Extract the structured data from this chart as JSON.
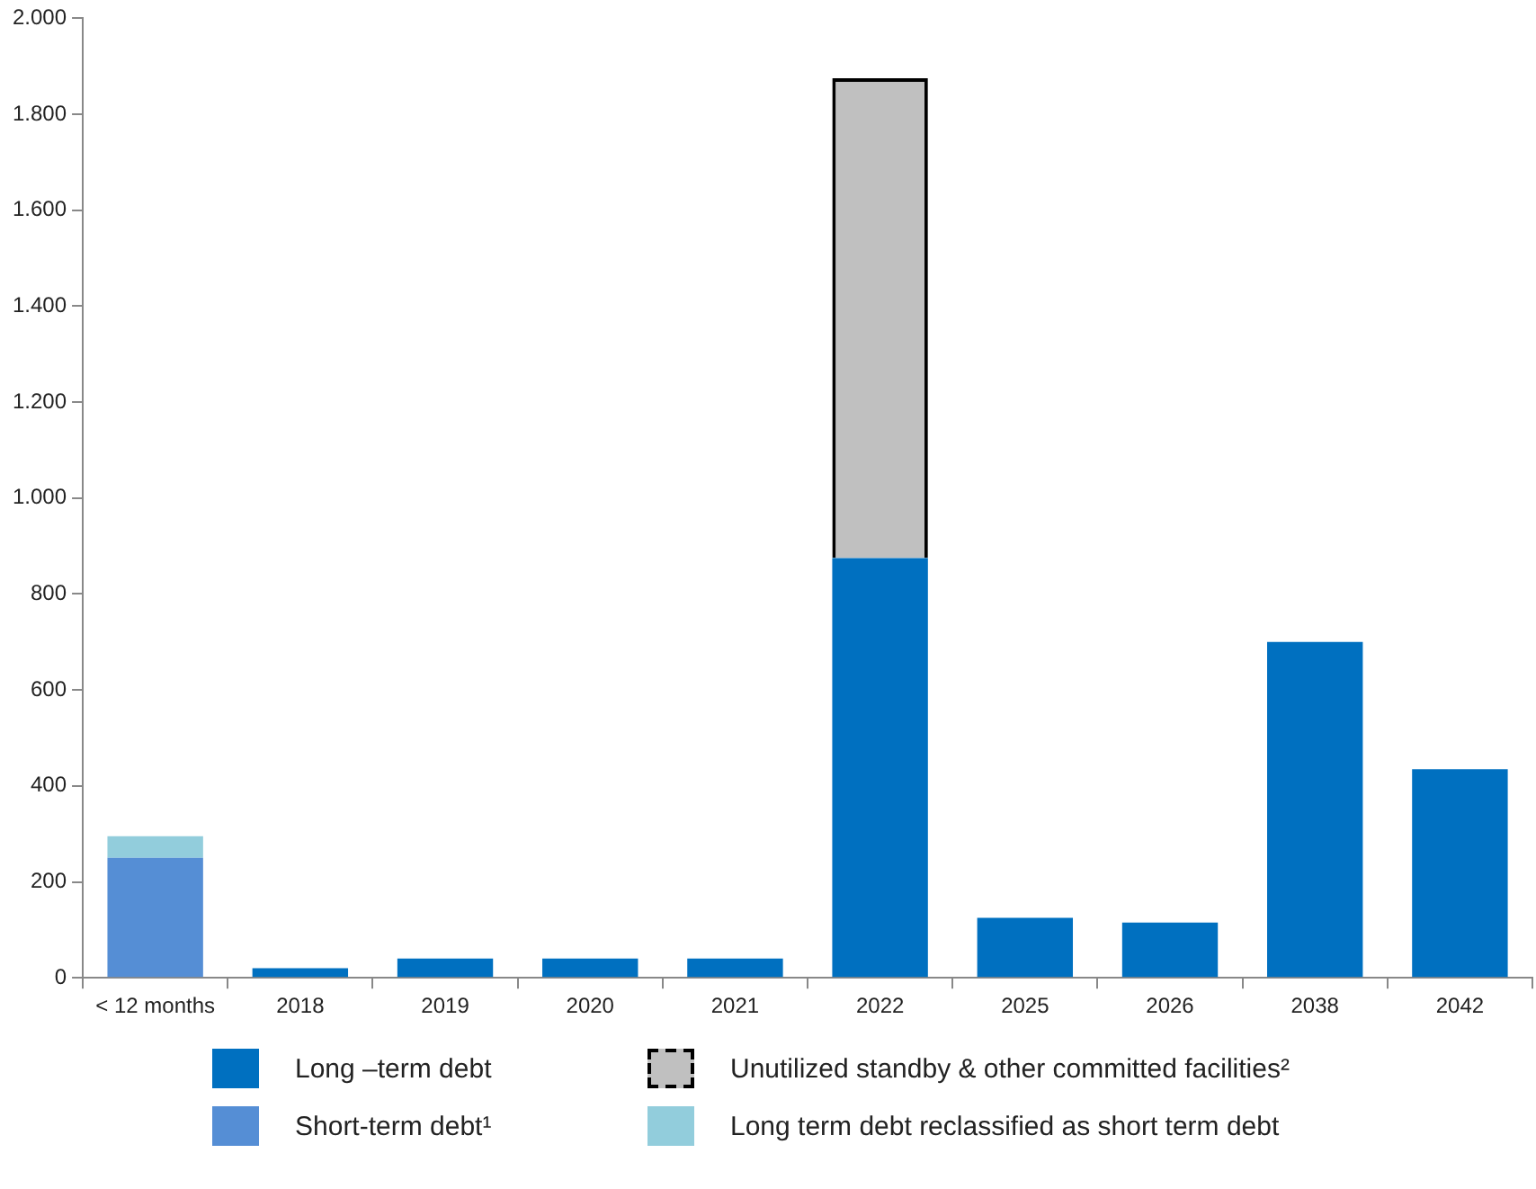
{
  "chart_data": {
    "type": "bar",
    "stacked": true,
    "grid": false,
    "legend": "bottom",
    "categories": [
      "< 12 months",
      "2018",
      "2019",
      "2020",
      "2021",
      "2022",
      "2025",
      "2026",
      "2038",
      "2042"
    ],
    "series": [
      {
        "name": "Long –term debt",
        "color": "#0070c0",
        "values": [
          null,
          20,
          40,
          40,
          40,
          875,
          125,
          115,
          700,
          435
        ]
      },
      {
        "name": "Short-term debt¹",
        "color": "#558ed5",
        "values": [
          250,
          null,
          null,
          null,
          null,
          null,
          null,
          null,
          null,
          null
        ]
      },
      {
        "name": "Unutilized standby & other committed facilities²",
        "color": "#c0c0c0",
        "line_style": "dashed",
        "values": [
          null,
          null,
          null,
          null,
          null,
          1000,
          null,
          null,
          null,
          null
        ]
      },
      {
        "name": "Long term debt reclassified as short term debt",
        "color": "#92cddc",
        "values": [
          45,
          null,
          null,
          null,
          null,
          null,
          null,
          null,
          null,
          null
        ]
      }
    ],
    "ylim": [
      0,
      2000
    ],
    "yticks": [
      0,
      200,
      400,
      600,
      800,
      {
        "value": 1000,
        "label": "1.000"
      },
      {
        "value": 1200,
        "label": "1.200"
      },
      {
        "value": 1400,
        "label": "1.400"
      },
      {
        "value": 1600,
        "label": "1.600"
      },
      {
        "value": 1800,
        "label": "1.800"
      },
      {
        "value": 2000,
        "label": "2.000"
      }
    ]
  }
}
